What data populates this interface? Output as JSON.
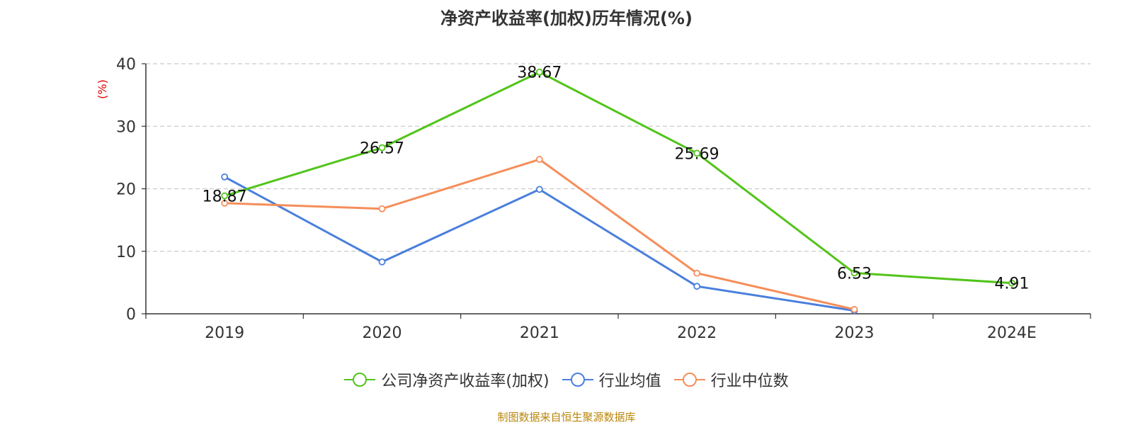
{
  "chart_data": {
    "type": "line",
    "title": "净资产收益率(加权)历年情况(%)",
    "ylabel": "(%)",
    "xlabel": "",
    "categories": [
      "2019",
      "2020",
      "2021",
      "2022",
      "2023",
      "2024E"
    ],
    "ylim": [
      0,
      40
    ],
    "yticks": [
      0,
      10,
      20,
      30,
      40
    ],
    "grid": true,
    "legend_position": "bottom",
    "series": [
      {
        "name": "公司净资产收益率(加权)",
        "color": "#52c41a",
        "values": [
          18.87,
          26.57,
          38.67,
          25.69,
          6.53,
          4.91
        ],
        "labels": [
          "18.87",
          "26.57",
          "38.67",
          "25.69",
          "6.53",
          "4.91"
        ]
      },
      {
        "name": "行业均值",
        "color": "#4a7fdc",
        "values": [
          21.9,
          8.3,
          19.9,
          4.4,
          0.5,
          null
        ]
      },
      {
        "name": "行业中位数",
        "color": "#f58e5a",
        "values": [
          17.7,
          16.8,
          24.7,
          6.5,
          0.7,
          null
        ]
      }
    ]
  },
  "source": "制图数据来自恒生聚源数据库"
}
